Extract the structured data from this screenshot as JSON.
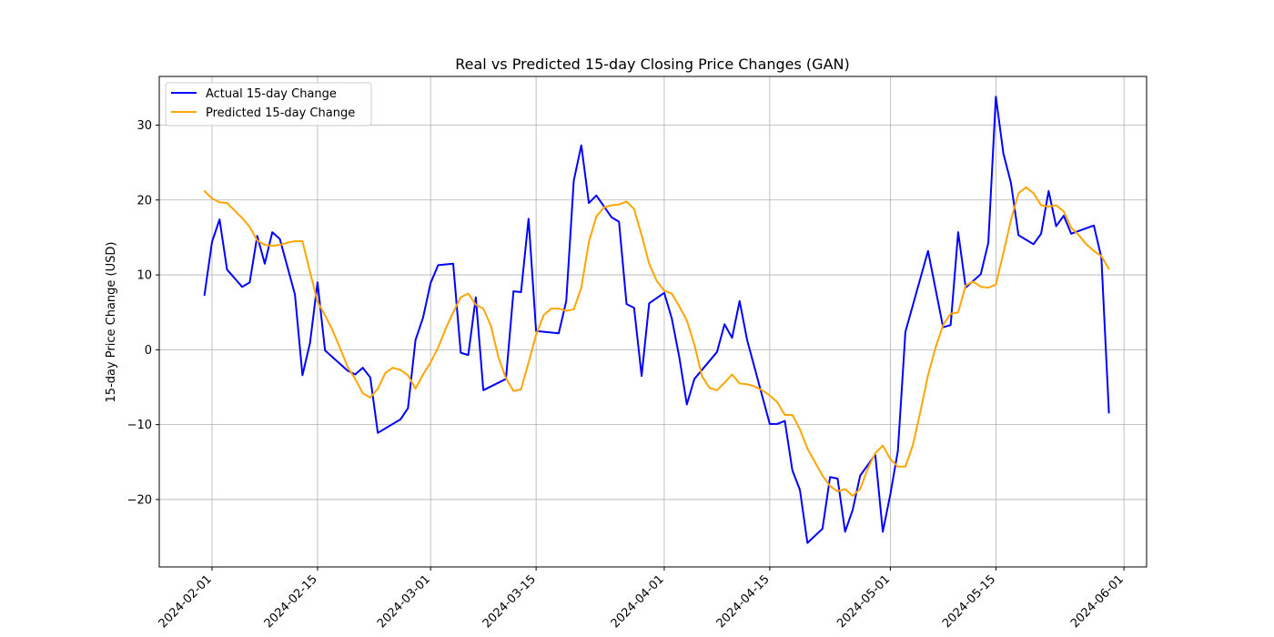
{
  "chart_data": {
    "type": "line",
    "title": "Real vs Predicted 15-day Closing Price Changes (GAN)",
    "xlabel": "",
    "ylabel": "15-day Price Change (USD)",
    "x_ticks": [
      "2024-02-01",
      "2024-02-15",
      "2024-03-01",
      "2024-03-15",
      "2024-04-01",
      "2024-04-15",
      "2024-05-01",
      "2024-05-15",
      "2024-06-01"
    ],
    "y_ticks": [
      -20,
      -10,
      0,
      10,
      20,
      30
    ],
    "xlim": [
      "2024-01-25",
      "2024-06-04"
    ],
    "ylim": [
      -29,
      36.5
    ],
    "grid": true,
    "legend_position": "top-left",
    "series": [
      {
        "name": "Actual 15-day Change",
        "color": "#0000ff",
        "x": [
          "2024-01-31",
          "2024-02-01",
          "2024-02-02",
          "2024-02-03",
          "2024-02-05",
          "2024-02-06",
          "2024-02-07",
          "2024-02-08",
          "2024-02-09",
          "2024-02-10",
          "2024-02-12",
          "2024-02-13",
          "2024-02-14",
          "2024-02-15",
          "2024-02-16",
          "2024-02-19",
          "2024-02-20",
          "2024-02-21",
          "2024-02-22",
          "2024-02-23",
          "2024-02-26",
          "2024-02-27",
          "2024-02-28",
          "2024-02-29",
          "2024-03-01",
          "2024-03-02",
          "2024-03-04",
          "2024-03-05",
          "2024-03-06",
          "2024-03-07",
          "2024-03-08",
          "2024-03-11",
          "2024-03-12",
          "2024-03-13",
          "2024-03-14",
          "2024-03-15",
          "2024-03-18",
          "2024-03-19",
          "2024-03-20",
          "2024-03-21",
          "2024-03-22",
          "2024-03-23",
          "2024-03-25",
          "2024-03-26",
          "2024-03-27",
          "2024-03-28",
          "2024-03-29",
          "2024-03-30",
          "2024-04-01",
          "2024-04-02",
          "2024-04-03",
          "2024-04-04",
          "2024-04-05",
          "2024-04-08",
          "2024-04-09",
          "2024-04-10",
          "2024-04-11",
          "2024-04-12",
          "2024-04-15",
          "2024-04-16",
          "2024-04-17",
          "2024-04-18",
          "2024-04-19",
          "2024-04-20",
          "2024-04-22",
          "2024-04-23",
          "2024-04-24",
          "2024-04-25",
          "2024-04-26",
          "2024-04-27",
          "2024-04-29",
          "2024-04-30",
          "2024-05-01",
          "2024-05-02",
          "2024-05-03",
          "2024-05-06",
          "2024-05-07",
          "2024-05-08",
          "2024-05-09",
          "2024-05-10",
          "2024-05-11",
          "2024-05-13",
          "2024-05-14",
          "2024-05-15",
          "2024-05-16",
          "2024-05-17",
          "2024-05-18",
          "2024-05-20",
          "2024-05-21",
          "2024-05-22",
          "2024-05-23",
          "2024-05-24",
          "2024-05-25",
          "2024-05-28",
          "2024-05-29",
          "2024-05-30"
        ],
        "values": [
          7.3,
          14.4,
          17.4,
          10.7,
          8.4,
          9.0,
          15.2,
          11.5,
          15.7,
          14.8,
          7.4,
          -3.4,
          0.9,
          9.0,
          -0.1,
          -2.8,
          -3.3,
          -2.4,
          -3.7,
          -11.1,
          -9.3,
          -7.8,
          1.3,
          4.3,
          8.9,
          11.3,
          11.5,
          -0.4,
          -0.7,
          7.0,
          -5.4,
          -3.9,
          7.8,
          7.7,
          17.5,
          2.5,
          2.2,
          6.5,
          22.6,
          27.3,
          19.6,
          20.6,
          17.7,
          17.1,
          6.1,
          5.6,
          -3.5,
          6.2,
          7.6,
          4.2,
          -1.0,
          -7.3,
          -3.9,
          -0.3,
          3.4,
          1.6,
          6.5,
          1.3,
          -9.9,
          -9.9,
          -9.5,
          -16.1,
          -18.7,
          -25.8,
          -23.9,
          -17.0,
          -17.2,
          -24.3,
          -21.4,
          -16.8,
          -14.0,
          -24.3,
          -19.3,
          -13.5,
          2.4,
          13.2,
          8.1,
          3.0,
          3.3,
          15.7,
          8.3,
          10.1,
          14.3,
          33.8,
          26.2,
          22.3,
          15.3,
          14.1,
          15.5,
          21.2,
          16.5,
          17.9,
          15.5,
          16.6,
          12.3,
          -8.4
        ]
      },
      {
        "name": "Predicted 15-day Change",
        "color": "#ffa500",
        "x": [
          "2024-01-31",
          "2024-02-01",
          "2024-02-02",
          "2024-02-03",
          "2024-02-04",
          "2024-02-05",
          "2024-02-06",
          "2024-02-07",
          "2024-02-08",
          "2024-02-09",
          "2024-02-10",
          "2024-02-11",
          "2024-02-12",
          "2024-02-13",
          "2024-02-14",
          "2024-02-15",
          "2024-02-16",
          "2024-02-17",
          "2024-02-18",
          "2024-02-19",
          "2024-02-20",
          "2024-02-21",
          "2024-02-22",
          "2024-02-23",
          "2024-02-24",
          "2024-02-25",
          "2024-02-26",
          "2024-02-27",
          "2024-02-28",
          "2024-02-29",
          "2024-03-01",
          "2024-03-02",
          "2024-03-03",
          "2024-03-04",
          "2024-03-05",
          "2024-03-06",
          "2024-03-07",
          "2024-03-08",
          "2024-03-09",
          "2024-03-10",
          "2024-03-11",
          "2024-03-12",
          "2024-03-13",
          "2024-03-14",
          "2024-03-15",
          "2024-03-16",
          "2024-03-17",
          "2024-03-18",
          "2024-03-19",
          "2024-03-20",
          "2024-03-21",
          "2024-03-22",
          "2024-03-23",
          "2024-03-24",
          "2024-03-25",
          "2024-03-26",
          "2024-03-27",
          "2024-03-28",
          "2024-03-29",
          "2024-03-30",
          "2024-03-31",
          "2024-04-01",
          "2024-04-02",
          "2024-04-03",
          "2024-04-04",
          "2024-04-05",
          "2024-04-06",
          "2024-04-07",
          "2024-04-08",
          "2024-04-09",
          "2024-04-10",
          "2024-04-11",
          "2024-04-12",
          "2024-04-13",
          "2024-04-14",
          "2024-04-15",
          "2024-04-16",
          "2024-04-17",
          "2024-04-18",
          "2024-04-19",
          "2024-04-20",
          "2024-04-21",
          "2024-04-22",
          "2024-04-23",
          "2024-04-24",
          "2024-04-25",
          "2024-04-26",
          "2024-04-27",
          "2024-04-28",
          "2024-04-29",
          "2024-04-30",
          "2024-05-01",
          "2024-05-02",
          "2024-05-03",
          "2024-05-04",
          "2024-05-05",
          "2024-05-06",
          "2024-05-07",
          "2024-05-08",
          "2024-05-09",
          "2024-05-10",
          "2024-05-11",
          "2024-05-12",
          "2024-05-13",
          "2024-05-14",
          "2024-05-15",
          "2024-05-16",
          "2024-05-17",
          "2024-05-18",
          "2024-05-19",
          "2024-05-20",
          "2024-05-21",
          "2024-05-22",
          "2024-05-23",
          "2024-05-24",
          "2024-05-25",
          "2024-05-26",
          "2024-05-27",
          "2024-05-28",
          "2024-05-29",
          "2024-05-30"
        ],
        "values": [
          21.2,
          20.2,
          19.7,
          19.6,
          18.6,
          17.6,
          16.4,
          14.6,
          14.0,
          13.9,
          14.0,
          14.3,
          14.5,
          14.5,
          10.4,
          6.4,
          4.6,
          2.6,
          0.2,
          -2.3,
          -3.9,
          -5.8,
          -6.4,
          -5.2,
          -3.1,
          -2.4,
          -2.7,
          -3.4,
          -5.2,
          -3.3,
          -1.7,
          0.3,
          2.8,
          5.0,
          7.0,
          7.5,
          6.0,
          5.5,
          3.2,
          -1.0,
          -3.8,
          -5.5,
          -5.3,
          -1.7,
          2.0,
          4.6,
          5.5,
          5.5,
          5.2,
          5.4,
          8.3,
          14.4,
          17.8,
          19.0,
          19.3,
          19.4,
          19.8,
          18.8,
          15.3,
          11.5,
          9.2,
          7.9,
          7.5,
          5.8,
          3.9,
          0.7,
          -3.5,
          -5.1,
          -5.4,
          -4.4,
          -3.3,
          -4.5,
          -4.6,
          -4.9,
          -5.4,
          -6.1,
          -7.0,
          -8.7,
          -8.7,
          -10.6,
          -13.2,
          -15.0,
          -16.8,
          -18.2,
          -18.9,
          -18.6,
          -19.5,
          -18.6,
          -15.9,
          -13.8,
          -12.8,
          -14.6,
          -15.6,
          -15.6,
          -12.7,
          -8.2,
          -3.4,
          0.3,
          3.3,
          4.8,
          5.0,
          8.6,
          9.1,
          8.4,
          8.3,
          8.7,
          12.9,
          17.3,
          20.9,
          21.7,
          20.9,
          19.3,
          19.1,
          19.3,
          18.5,
          16.3,
          15.3,
          14.1,
          13.2,
          12.5,
          10.8
        ]
      }
    ]
  }
}
